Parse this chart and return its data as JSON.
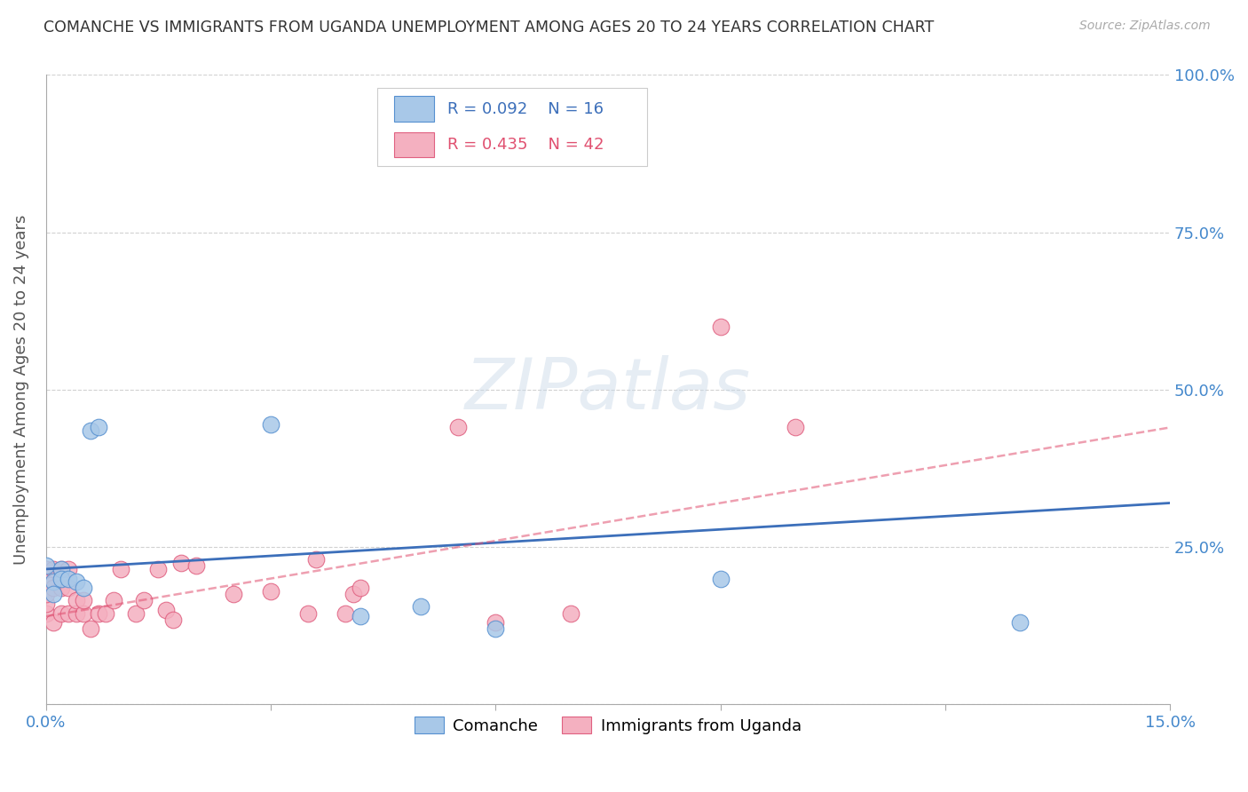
{
  "title": "COMANCHE VS IMMIGRANTS FROM UGANDA UNEMPLOYMENT AMONG AGES 20 TO 24 YEARS CORRELATION CHART",
  "source": "Source: ZipAtlas.com",
  "ylabel": "Unemployment Among Ages 20 to 24 years",
  "xlim": [
    0.0,
    0.15
  ],
  "ylim": [
    0.0,
    1.0
  ],
  "xticks": [
    0.0,
    0.03,
    0.06,
    0.09,
    0.12,
    0.15
  ],
  "xticklabels": [
    "0.0%",
    "",
    "",
    "",
    "",
    "15.0%"
  ],
  "ytick_positions": [
    0.0,
    0.25,
    0.5,
    0.75,
    1.0
  ],
  "yticklabels_right": [
    "",
    "25.0%",
    "50.0%",
    "75.0%",
    "100.0%"
  ],
  "comanche_R": 0.092,
  "comanche_N": 16,
  "uganda_R": 0.435,
  "uganda_N": 42,
  "comanche_color": "#a8c8e8",
  "comanche_edge_color": "#5590d0",
  "comanche_line_color": "#3c6fba",
  "uganda_color": "#f4b0c0",
  "uganda_edge_color": "#e06080",
  "uganda_line_color": "#e05070",
  "watermark": "ZIPatlas",
  "comanche_x": [
    0.0,
    0.001,
    0.001,
    0.002,
    0.002,
    0.003,
    0.004,
    0.005,
    0.006,
    0.007,
    0.03,
    0.042,
    0.05,
    0.06,
    0.09,
    0.13
  ],
  "comanche_y": [
    0.22,
    0.195,
    0.175,
    0.215,
    0.2,
    0.2,
    0.195,
    0.185,
    0.435,
    0.44,
    0.445,
    0.14,
    0.155,
    0.12,
    0.2,
    0.13
  ],
  "uganda_x": [
    0.0,
    0.0,
    0.0,
    0.0,
    0.0,
    0.001,
    0.001,
    0.001,
    0.002,
    0.002,
    0.002,
    0.003,
    0.003,
    0.003,
    0.004,
    0.004,
    0.005,
    0.005,
    0.006,
    0.007,
    0.008,
    0.009,
    0.01,
    0.012,
    0.013,
    0.015,
    0.016,
    0.017,
    0.018,
    0.02,
    0.025,
    0.03,
    0.035,
    0.036,
    0.04,
    0.041,
    0.042,
    0.055,
    0.06,
    0.07,
    0.09,
    0.1
  ],
  "uganda_y": [
    0.145,
    0.16,
    0.175,
    0.2,
    0.215,
    0.13,
    0.185,
    0.215,
    0.145,
    0.185,
    0.215,
    0.145,
    0.185,
    0.215,
    0.145,
    0.165,
    0.145,
    0.165,
    0.12,
    0.145,
    0.145,
    0.165,
    0.215,
    0.145,
    0.165,
    0.215,
    0.15,
    0.135,
    0.225,
    0.22,
    0.175,
    0.18,
    0.145,
    0.23,
    0.145,
    0.175,
    0.185,
    0.44,
    0.13,
    0.145,
    0.6,
    0.44
  ],
  "comanche_line_x0": 0.0,
  "comanche_line_x1": 0.15,
  "comanche_line_y0": 0.215,
  "comanche_line_y1": 0.32,
  "uganda_line_x0": 0.0,
  "uganda_line_x1": 0.15,
  "uganda_line_y0": 0.14,
  "uganda_line_y1": 0.44
}
